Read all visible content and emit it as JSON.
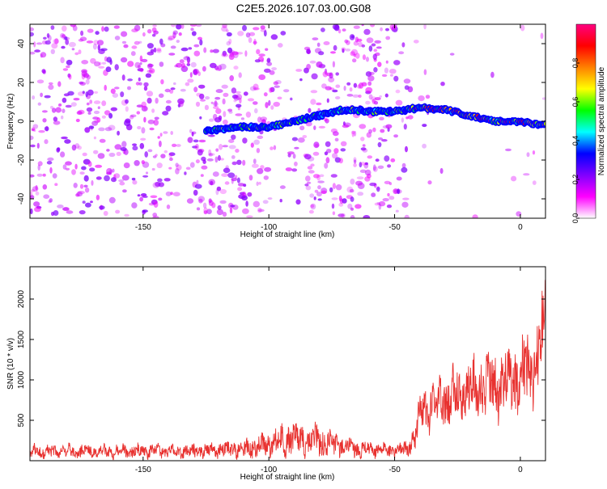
{
  "figure": {
    "title": "C2E5.2026.107.03.00.G08"
  },
  "chart_data": [
    {
      "type": "heatmap",
      "xlabel": "Height of straight line (km)",
      "ylabel": "Frequency (Hz)",
      "xlim": [
        -195,
        10
      ],
      "ylim": [
        -50,
        50
      ],
      "xticks": [
        -150,
        -100,
        -50,
        0
      ],
      "yticks": [
        -40,
        -20,
        0,
        20,
        40
      ],
      "colorbar": {
        "label": "Normalized spectral amplitude",
        "range": [
          0,
          1
        ],
        "ticks": [
          0.0,
          0.2,
          0.4,
          0.6,
          0.8
        ],
        "tick_labels": [
          "0.0",
          "0.2",
          "0.4",
          "0.6",
          "0.8"
        ],
        "colors": [
          "#ffffff",
          "#ff00ff",
          "#8000ff",
          "#0000ff",
          "#00ffff",
          "#00ff00",
          "#ffff00",
          "#ff8000",
          "#ff0000",
          "#ff0080"
        ]
      },
      "ridge": {
        "x": [
          -125,
          -110,
          -100,
          -90,
          -80,
          -70,
          -60,
          -50,
          -45,
          -40,
          -30,
          -20,
          -10,
          0,
          10
        ],
        "frequency": [
          -5,
          -3,
          -3,
          0,
          3,
          6,
          5,
          5,
          6,
          7,
          6,
          3,
          0,
          0,
          -2
        ]
      },
      "grid": false
    },
    {
      "type": "line",
      "xlabel": "Height of straight line (km)",
      "ylabel": "SNR (10 * v/v)",
      "xlim": [
        -195,
        10
      ],
      "ylim": [
        0,
        2400
      ],
      "xticks": [
        -150,
        -100,
        -50,
        0
      ],
      "yticks": [
        500,
        1000,
        1500,
        2000
      ],
      "series": [
        {
          "color": "#e8312f",
          "x": [
            -195,
            -180,
            -160,
            -140,
            -120,
            -110,
            -100,
            -95,
            -90,
            -85,
            -80,
            -75,
            -70,
            -65,
            -60,
            -55,
            -50,
            -45,
            -42,
            -40,
            -38,
            -35,
            -30,
            -25,
            -20,
            -15,
            -10,
            -5,
            0,
            5,
            8,
            10
          ],
          "values": [
            110,
            120,
            115,
            120,
            130,
            150,
            200,
            250,
            280,
            260,
            240,
            200,
            170,
            150,
            140,
            130,
            130,
            140,
            300,
            520,
            650,
            700,
            760,
            830,
            900,
            920,
            950,
            980,
            1000,
            1150,
            1400,
            1800
          ],
          "amplitude": [
            70,
            70,
            70,
            70,
            80,
            100,
            130,
            160,
            180,
            170,
            150,
            130,
            110,
            90,
            80,
            70,
            70,
            80,
            150,
            200,
            230,
            240,
            260,
            280,
            300,
            320,
            330,
            350,
            370,
            380,
            400,
            500
          ]
        }
      ],
      "grid": false
    }
  ]
}
